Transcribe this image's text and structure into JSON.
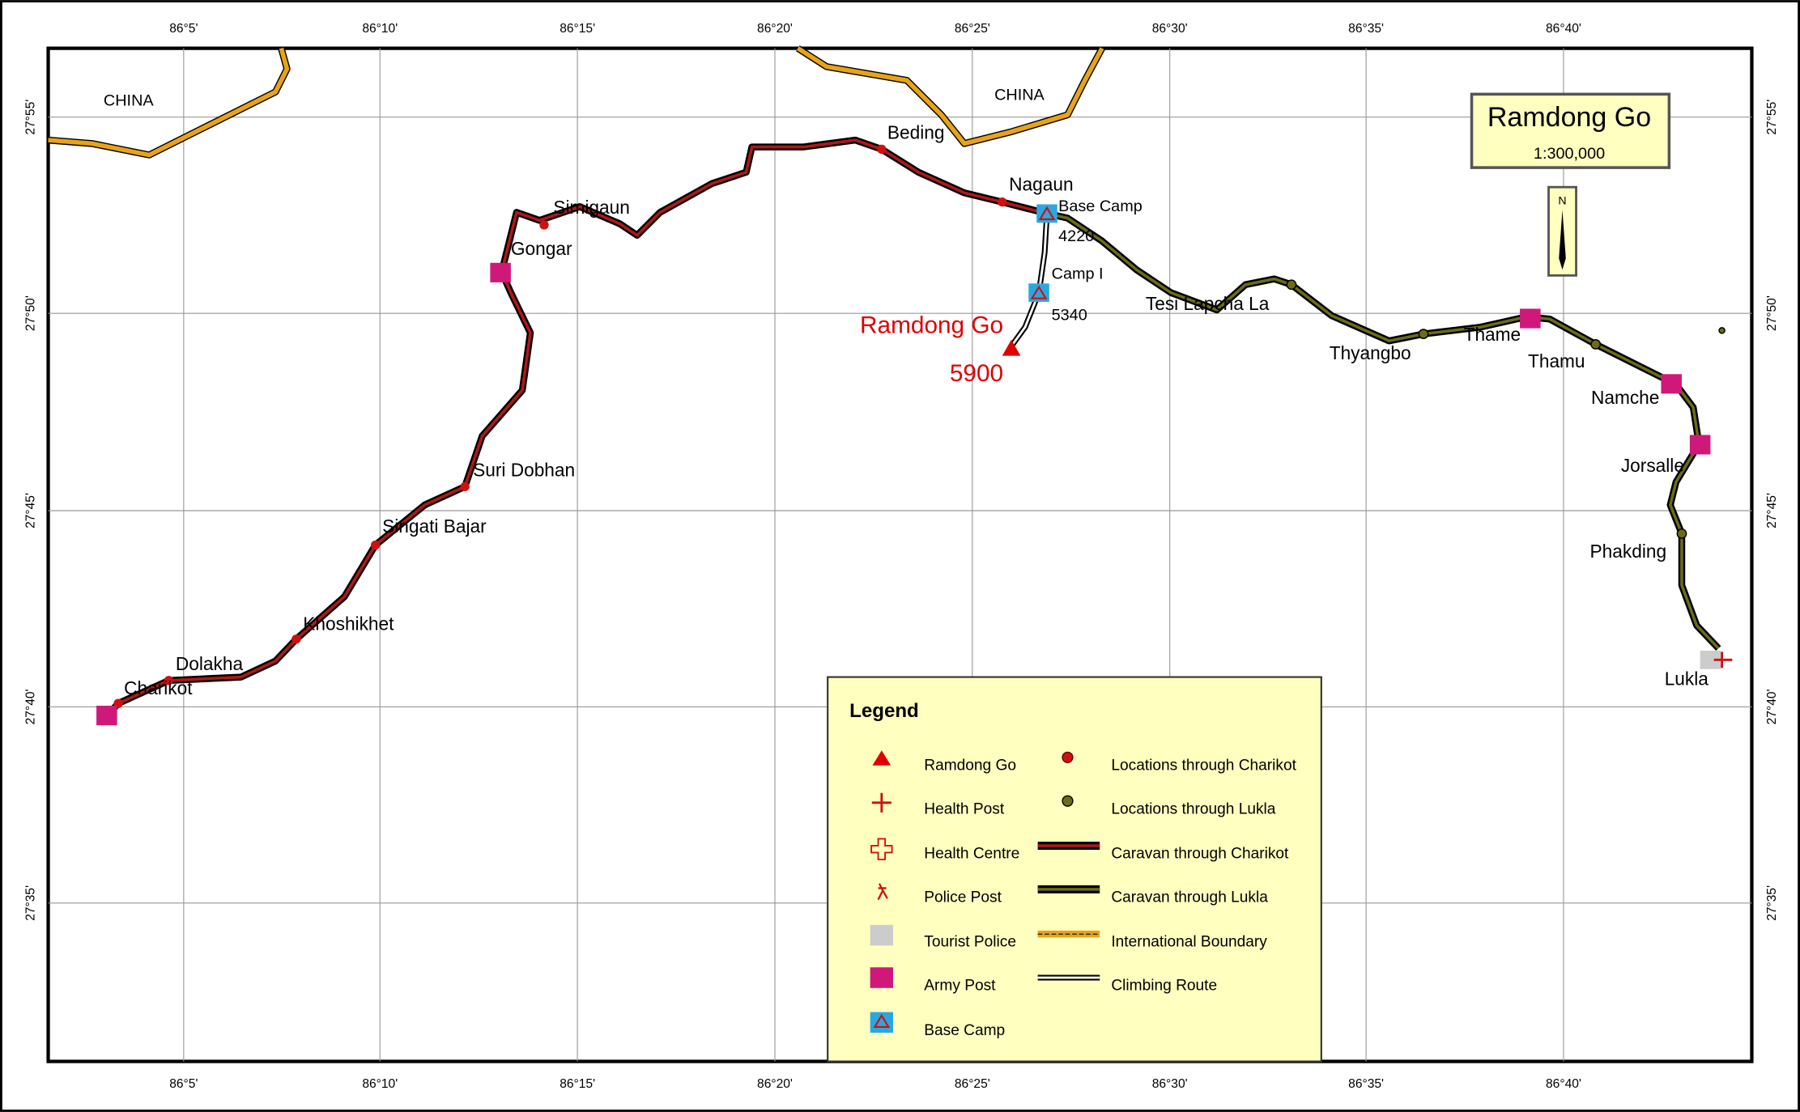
{
  "title": "Ramdong Go",
  "scale": "1:300,000",
  "north": "N",
  "grid": {
    "x_labels": [
      "86°5'",
      "86°10'",
      "86°15'",
      "86°20'",
      "86°25'",
      "86°30'",
      "86°35'",
      "86°40'"
    ],
    "y_labels": [
      "27°55'",
      "27°50'",
      "27°45'",
      "27°40'",
      "27°35'"
    ]
  },
  "countries": [
    "CHINA",
    "CHINA"
  ],
  "places": [
    "Beding",
    "Nagaun",
    "Base Camp",
    "4220",
    "Camp I",
    "5340",
    "Simigaun",
    "Gongar",
    "Tesi Lapcha La",
    "Thyangbo",
    "Thame",
    "Thamu",
    "Namche",
    "Jorsalle",
    "Phakding",
    "Lukla",
    "Suri Dobhan",
    "Singati Bajar",
    "Khoshikhet",
    "Dolakha",
    "Charikot"
  ],
  "summit": {
    "label": "Ramdong Go",
    "elevation": "5900"
  },
  "legend": {
    "title": "Legend",
    "items": [
      "Ramdong Go",
      "Health Post",
      "Health Centre",
      "Police Post",
      "Tourist Police",
      "Army Post",
      "Base Camp",
      "Locations through Charikot",
      "Locations through Lukla",
      "Caravan through Charikot",
      "Caravan through Lukla",
      "International Boundary",
      "Climbing Route"
    ]
  }
}
